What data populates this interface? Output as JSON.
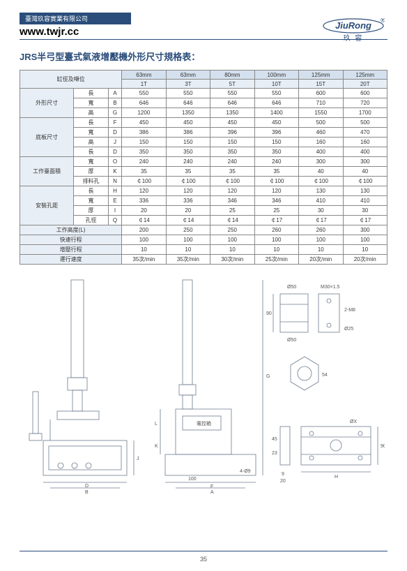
{
  "header": {
    "company": "臺灣玖容實業有限公司",
    "url": "www.twjr.cc",
    "brand": "JiuRong",
    "brand_cn": "玖 容"
  },
  "title": "JRS半弓型臺式氣液增壓機外形尺寸規格表：",
  "table": {
    "col_label": "缸徑及噸位",
    "sizes": [
      "63mm",
      "63mm",
      "80mm",
      "100mm",
      "125mm",
      "125mm"
    ],
    "tons": [
      "1T",
      "3T",
      "5T",
      "10T",
      "15T",
      "20T"
    ],
    "groups": [
      {
        "name": "外形尺寸",
        "rows": [
          {
            "n": "長",
            "s": "A",
            "v": [
              "550",
              "550",
              "550",
              "550",
              "600",
              "600"
            ]
          },
          {
            "n": "寬",
            "s": "B",
            "v": [
              "646",
              "646",
              "646",
              "646",
              "710",
              "720"
            ]
          },
          {
            "n": "高",
            "s": "G",
            "v": [
              "1200",
              "1350",
              "1350",
              "1400",
              "1550",
              "1700"
            ]
          }
        ]
      },
      {
        "name": "底板尺寸",
        "rows": [
          {
            "n": "長",
            "s": "F",
            "v": [
              "450",
              "450",
              "450",
              "450",
              "500",
              "500"
            ]
          },
          {
            "n": "寬",
            "s": "D",
            "v": [
              "386",
              "386",
              "396",
              "396",
              "460",
              "470"
            ]
          },
          {
            "n": "高",
            "s": "J",
            "v": [
              "150",
              "150",
              "150",
              "150",
              "160",
              "160"
            ]
          },
          {
            "n": "長",
            "s": "D",
            "v": [
              "350",
              "350",
              "350",
              "350",
              "400",
              "400"
            ]
          }
        ]
      },
      {
        "name": "工作臺面積",
        "rows": [
          {
            "n": "寬",
            "s": "O",
            "v": [
              "240",
              "240",
              "240",
              "240",
              "300",
              "300"
            ]
          },
          {
            "n": "厚",
            "s": "K",
            "v": [
              "35",
              "35",
              "35",
              "35",
              "40",
              "40"
            ]
          },
          {
            "n": "排料孔",
            "s": "N",
            "v": [
              "￠100",
              "￠100",
              "￠100",
              "￠100",
              "￠100",
              "￠100"
            ]
          }
        ]
      },
      {
        "name": "安裝孔距",
        "rows": [
          {
            "n": "長",
            "s": "H",
            "v": [
              "120",
              "120",
              "120",
              "120",
              "130",
              "130"
            ]
          },
          {
            "n": "寬",
            "s": "E",
            "v": [
              "336",
              "336",
              "346",
              "346",
              "410",
              "410"
            ]
          },
          {
            "n": "厚",
            "s": "I",
            "v": [
              "20",
              "20",
              "25",
              "25",
              "30",
              "30"
            ]
          },
          {
            "n": "孔徑",
            "s": "Q",
            "v": [
              "￠14",
              "￠14",
              "￠14",
              "￠17",
              "￠17",
              "￠17"
            ]
          }
        ]
      }
    ],
    "singles": [
      {
        "n": "工作高度(L)",
        "v": [
          "200",
          "250",
          "250",
          "260",
          "260",
          "300"
        ]
      },
      {
        "n": "快速行程",
        "v": [
          "100",
          "100",
          "100",
          "100",
          "100",
          "100"
        ]
      },
      {
        "n": "增壓行程",
        "v": [
          "10",
          "10",
          "10",
          "10",
          "10",
          "10"
        ]
      },
      {
        "n": "運行速度",
        "v": [
          "35次/min",
          "35次/min",
          "30次/min",
          "25次/min",
          "20次/min",
          "20次/min"
        ]
      }
    ]
  },
  "diagram": {
    "labels": {
      "ebox": "電控箱",
      "d50": "Ø50",
      "m30": "M30×1.5",
      "m8": "2-M8",
      "d25": "Ø25",
      "dx": "ØX",
      "q9": "4-Ø9"
    },
    "dims": [
      "A",
      "B",
      "D",
      "E",
      "F",
      "G",
      "H",
      "I",
      "J",
      "K",
      "L",
      "N",
      "O",
      "Q",
      "90",
      "15",
      "35",
      "54",
      "100",
      "9",
      "20",
      "23",
      "45"
    ]
  },
  "page": "35",
  "colors": {
    "brand": "#2a4d7a",
    "hdr": "#e8eef5",
    "hdr2": "#d4e0ed",
    "line": "#6b7a8f"
  }
}
